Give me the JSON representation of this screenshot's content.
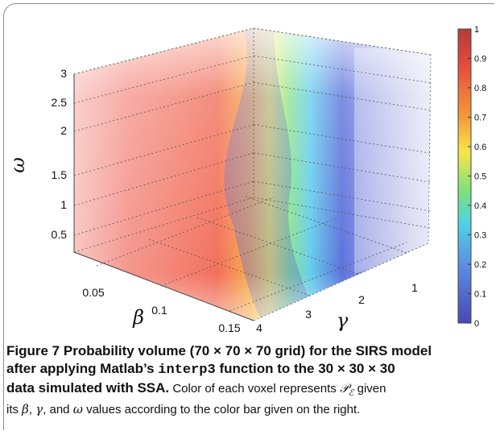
{
  "figure": {
    "axes": {
      "omega_symbol": "ω",
      "beta_symbol": "β",
      "gamma_symbol": "γ"
    },
    "colors": {
      "high": "#e0403a",
      "mid": "#f6e94a",
      "low": "#3d46c8"
    }
  },
  "chart_data": {
    "type": "heatmap",
    "title": "",
    "dimensions": [
      "β",
      "γ",
      "ω"
    ],
    "axes": {
      "omega": {
        "label": "ω",
        "ticks": [
          "0.5",
          "1",
          "1.5",
          "2",
          "2.5",
          "3"
        ],
        "range": [
          0.25,
          3
        ]
      },
      "beta": {
        "label": "β",
        "ticks": [
          "0.05",
          "0.1",
          "0.15"
        ],
        "range": [
          0.01,
          0.15
        ]
      },
      "gamma": {
        "label": "γ",
        "ticks": [
          "1",
          "2",
          "3",
          "4"
        ],
        "range": [
          0.5,
          4
        ]
      }
    },
    "colorbar": {
      "range": [
        0,
        1
      ],
      "ticks": [
        "1",
        "0.9",
        "0.8",
        "0.7",
        "0.6",
        "0.5",
        "0.4",
        "0.3",
        "0.2",
        "0.1",
        "0"
      ]
    },
    "grid": true
  },
  "caption": {
    "label": "Figure 7",
    "bold_line1": "Probability volume (70 × 70 × 70 grid) for the SIRS model",
    "bold_line2_pre": "after applying Matlab’s ",
    "bold_line2_func": "interp3",
    "bold_line2_post": " function to the 30 × 30 × 30",
    "bold_line3": "data simulated with SSA.",
    "line3_rest_pre": " Color of each voxel represents ",
    "pe_symbol": "𝒫",
    "pe_sub": "ℰ",
    "line3_rest_post": " given",
    "line4_pre": "its ",
    "beta": "β",
    "comma1": ", ",
    "gamma": "γ",
    "and_text": ", and ",
    "omega": "ω",
    "line4_post": " values according to the color bar given on the right."
  }
}
